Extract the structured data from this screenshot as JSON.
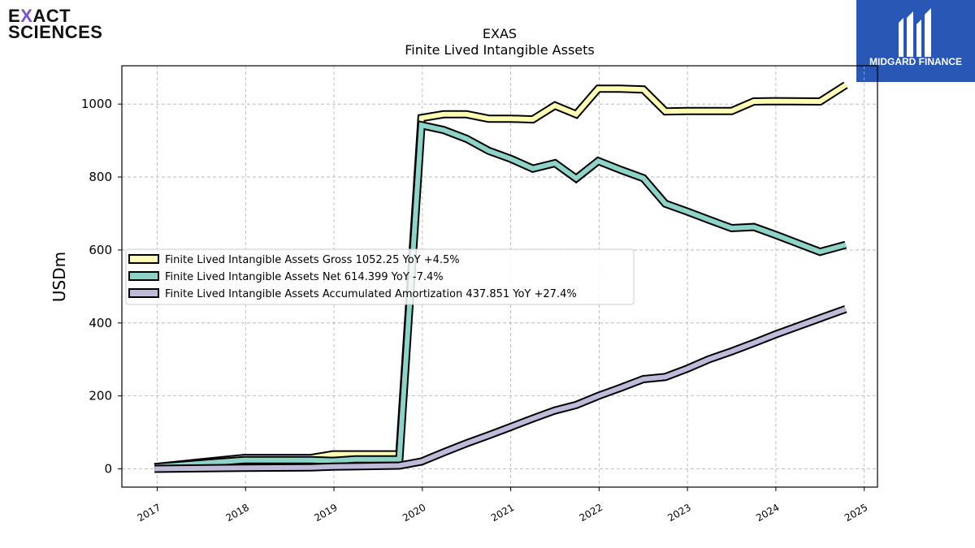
{
  "logos": {
    "left_line1_a": "E",
    "left_line1_x": "X",
    "left_line1_b": "ACT",
    "left_line2": "SCIENCES",
    "right_text": "MIDGARD FINANCE"
  },
  "colors": {
    "gross": "#ffffb3",
    "net": "#8dd3c7",
    "amortization": "#bebada",
    "outline": "#000000",
    "grid": "#b0b0b0",
    "brand_blue": "#2857b5"
  },
  "chart_data": {
    "type": "line",
    "title": "EXAS",
    "subtitle": "Finite Lived Intangible Assets",
    "xlabel": "",
    "ylabel": "USDm",
    "xlim": [
      2016.6,
      2025.15
    ],
    "ylim": [
      -50,
      1105
    ],
    "yticks": [
      0,
      200,
      400,
      600,
      800,
      1000
    ],
    "xticks": [
      2017,
      2018,
      2019,
      2020,
      2021,
      2022,
      2023,
      2024,
      2025
    ],
    "grid": true,
    "legend_position": "center-left",
    "series": [
      {
        "name": "Finite Lived Intangible Assets Gross",
        "legend_label": "Finite Lived Intangible Assets Gross  1052.25 YoY +4.5%",
        "color_key": "gross",
        "points": [
          [
            2016.97,
            5
          ],
          [
            2017.98,
            30
          ],
          [
            2018.74,
            30
          ],
          [
            2018.99,
            40
          ],
          [
            2019.74,
            40
          ],
          [
            2019.99,
            962
          ],
          [
            2020.24,
            972
          ],
          [
            2020.5,
            972
          ],
          [
            2020.75,
            960
          ],
          [
            2021.0,
            960
          ],
          [
            2021.25,
            958
          ],
          [
            2021.5,
            996
          ],
          [
            2021.74,
            972
          ],
          [
            2021.99,
            1042
          ],
          [
            2022.24,
            1042
          ],
          [
            2022.5,
            1040
          ],
          [
            2022.75,
            980
          ],
          [
            2023.0,
            981
          ],
          [
            2023.5,
            981
          ],
          [
            2023.75,
            1007
          ],
          [
            2023.99,
            1008
          ],
          [
            2024.5,
            1007
          ],
          [
            2024.79,
            1052
          ]
        ]
      },
      {
        "name": "Finite Lived Intangible Assets Net",
        "legend_label": "Finite Lived Intangible Assets Net  614.399 YoY -7.4%",
        "color_key": "net",
        "points": [
          [
            2016.97,
            5
          ],
          [
            2017.98,
            24
          ],
          [
            2018.74,
            24
          ],
          [
            2018.99,
            22
          ],
          [
            2019.24,
            26
          ],
          [
            2019.74,
            26
          ],
          [
            2019.99,
            942
          ],
          [
            2020.24,
            929
          ],
          [
            2020.5,
            905
          ],
          [
            2020.75,
            872
          ],
          [
            2021.0,
            850
          ],
          [
            2021.25,
            823
          ],
          [
            2021.5,
            838
          ],
          [
            2021.74,
            796
          ],
          [
            2021.99,
            844
          ],
          [
            2022.24,
            820
          ],
          [
            2022.5,
            797
          ],
          [
            2022.75,
            727
          ],
          [
            2023.0,
            705
          ],
          [
            2023.24,
            683
          ],
          [
            2023.5,
            660
          ],
          [
            2023.75,
            663
          ],
          [
            2023.99,
            642
          ],
          [
            2024.5,
            595
          ],
          [
            2024.79,
            614
          ]
        ]
      },
      {
        "name": "Finite Lived Intangible Assets Accumulated Amortization",
        "legend_label": "Finite Lived Intangible Assets Accumulated Amortization  437.851 YoY +27.4%",
        "color_key": "amortization",
        "points": [
          [
            2016.97,
            0
          ],
          [
            2017.98,
            3
          ],
          [
            2018.74,
            4
          ],
          [
            2018.99,
            6
          ],
          [
            2019.24,
            7
          ],
          [
            2019.74,
            9
          ],
          [
            2019.99,
            20
          ],
          [
            2020.24,
            45
          ],
          [
            2020.5,
            70
          ],
          [
            2020.75,
            92
          ],
          [
            2021.0,
            115
          ],
          [
            2021.25,
            138
          ],
          [
            2021.5,
            160
          ],
          [
            2021.74,
            175
          ],
          [
            2021.99,
            200
          ],
          [
            2022.24,
            222
          ],
          [
            2022.5,
            246
          ],
          [
            2022.75,
            252
          ],
          [
            2023.0,
            275
          ],
          [
            2023.24,
            300
          ],
          [
            2023.5,
            322
          ],
          [
            2023.75,
            345
          ],
          [
            2023.99,
            368
          ],
          [
            2024.5,
            413
          ],
          [
            2024.79,
            438
          ]
        ]
      }
    ]
  }
}
